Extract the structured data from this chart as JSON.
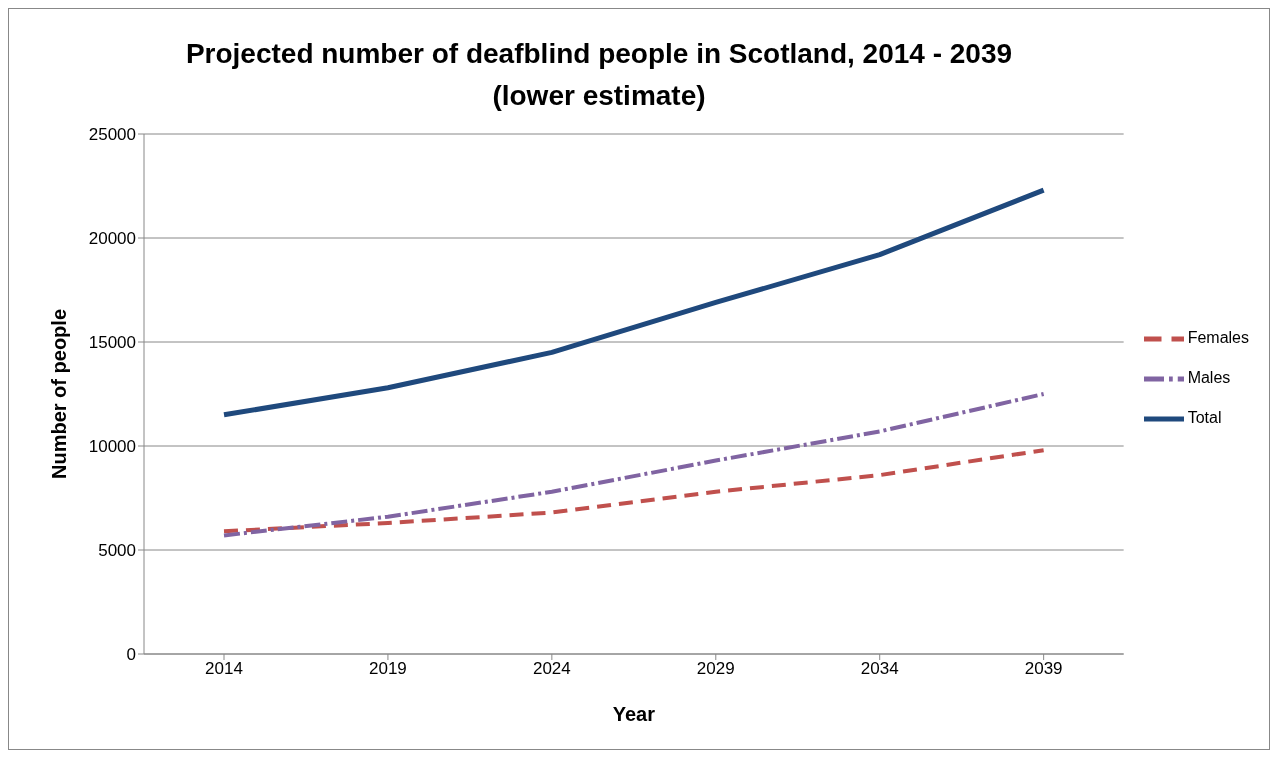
{
  "chart_data": {
    "type": "line",
    "title": "Projected number of deafblind people in Scotland, 2014 - 2039 (lower estimate)",
    "xlabel": "Year",
    "ylabel": "Number of people",
    "categories": [
      "2014",
      "2019",
      "2024",
      "2029",
      "2034",
      "2039"
    ],
    "series": [
      {
        "name": "Females",
        "color": "#c0504d",
        "line_style": "dashed",
        "values": [
          5900,
          6300,
          6800,
          7800,
          8600,
          9800
        ]
      },
      {
        "name": "Males",
        "color": "#8064a2",
        "line_style": "dashdot",
        "values": [
          5700,
          6600,
          7800,
          9300,
          10700,
          12500
        ]
      },
      {
        "name": "Total",
        "color": "#1f497d",
        "line_style": "solid",
        "values": [
          11500,
          12800,
          14500,
          16900,
          19200,
          22300
        ]
      }
    ],
    "ylim": [
      0,
      25000
    ],
    "yticks": [
      0,
      5000,
      10000,
      15000,
      20000,
      25000
    ],
    "grid": "y",
    "legend": "right",
    "marker": "none"
  }
}
